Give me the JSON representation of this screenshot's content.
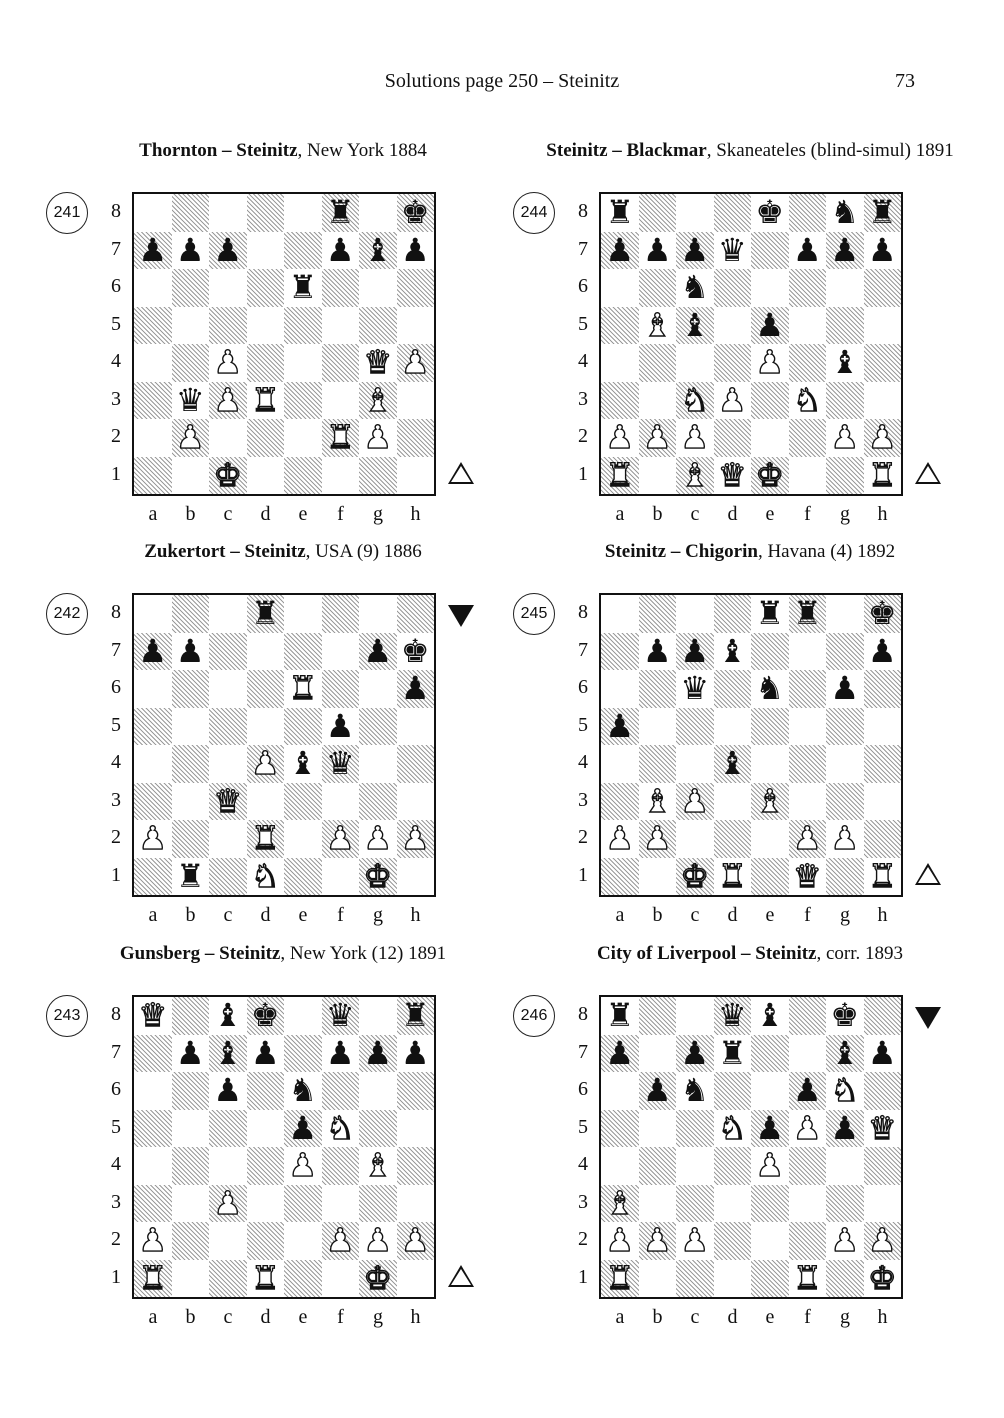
{
  "header": {
    "title": "Solutions page 250 – Steinitz",
    "page_number": "73"
  },
  "files": [
    "a",
    "b",
    "c",
    "d",
    "e",
    "f",
    "g",
    "h"
  ],
  "ranks": [
    "8",
    "7",
    "6",
    "5",
    "4",
    "3",
    "2",
    "1"
  ],
  "diagrams": [
    {
      "number": "241",
      "players": "Thornton – Steinitz",
      "details": ", New York 1884",
      "to_move": "white",
      "pieces": [
        {
          "sq": "f8",
          "p": "bR"
        },
        {
          "sq": "h8",
          "p": "bK"
        },
        {
          "sq": "a7",
          "p": "bP"
        },
        {
          "sq": "b7",
          "p": "bP"
        },
        {
          "sq": "c7",
          "p": "bP"
        },
        {
          "sq": "f7",
          "p": "bP"
        },
        {
          "sq": "g7",
          "p": "bB"
        },
        {
          "sq": "h7",
          "p": "bP"
        },
        {
          "sq": "e6",
          "p": "bR"
        },
        {
          "sq": "c4",
          "p": "wP"
        },
        {
          "sq": "g4",
          "p": "wQ"
        },
        {
          "sq": "h4",
          "p": "wP"
        },
        {
          "sq": "b3",
          "p": "bQ"
        },
        {
          "sq": "c3",
          "p": "wP"
        },
        {
          "sq": "d3",
          "p": "wR"
        },
        {
          "sq": "g3",
          "p": "wB"
        },
        {
          "sq": "b2",
          "p": "wP"
        },
        {
          "sq": "f2",
          "p": "wR"
        },
        {
          "sq": "g2",
          "p": "wP"
        },
        {
          "sq": "c1",
          "p": "wK"
        }
      ]
    },
    {
      "number": "244",
      "players": "Steinitz – Blackmar",
      "details": ", Skaneateles (blind-simul) 1891",
      "to_move": "white",
      "pieces": [
        {
          "sq": "a8",
          "p": "bR"
        },
        {
          "sq": "e8",
          "p": "bK"
        },
        {
          "sq": "g8",
          "p": "bN"
        },
        {
          "sq": "h8",
          "p": "bR"
        },
        {
          "sq": "a7",
          "p": "bP"
        },
        {
          "sq": "b7",
          "p": "bP"
        },
        {
          "sq": "c7",
          "p": "bP"
        },
        {
          "sq": "d7",
          "p": "bQ"
        },
        {
          "sq": "f7",
          "p": "bP"
        },
        {
          "sq": "g7",
          "p": "bP"
        },
        {
          "sq": "h7",
          "p": "bP"
        },
        {
          "sq": "c6",
          "p": "bN"
        },
        {
          "sq": "b5",
          "p": "wB"
        },
        {
          "sq": "c5",
          "p": "bB"
        },
        {
          "sq": "e5",
          "p": "bP"
        },
        {
          "sq": "e4",
          "p": "wP"
        },
        {
          "sq": "g4",
          "p": "bB"
        },
        {
          "sq": "c3",
          "p": "wN"
        },
        {
          "sq": "d3",
          "p": "wP"
        },
        {
          "sq": "f3",
          "p": "wN"
        },
        {
          "sq": "a2",
          "p": "wP"
        },
        {
          "sq": "b2",
          "p": "wP"
        },
        {
          "sq": "c2",
          "p": "wP"
        },
        {
          "sq": "g2",
          "p": "wP"
        },
        {
          "sq": "h2",
          "p": "wP"
        },
        {
          "sq": "a1",
          "p": "wR"
        },
        {
          "sq": "c1",
          "p": "wB"
        },
        {
          "sq": "d1",
          "p": "wQ"
        },
        {
          "sq": "e1",
          "p": "wK"
        },
        {
          "sq": "h1",
          "p": "wR"
        }
      ]
    },
    {
      "number": "242",
      "players": "Zukertort – Steinitz",
      "details": ", USA (9) 1886",
      "to_move": "black",
      "pieces": [
        {
          "sq": "d8",
          "p": "bR"
        },
        {
          "sq": "a7",
          "p": "bP"
        },
        {
          "sq": "b7",
          "p": "bP"
        },
        {
          "sq": "g7",
          "p": "bP"
        },
        {
          "sq": "h7",
          "p": "bK"
        },
        {
          "sq": "e6",
          "p": "wR"
        },
        {
          "sq": "h6",
          "p": "bP"
        },
        {
          "sq": "f5",
          "p": "bP"
        },
        {
          "sq": "d4",
          "p": "wP"
        },
        {
          "sq": "e4",
          "p": "bB"
        },
        {
          "sq": "f4",
          "p": "bQ"
        },
        {
          "sq": "c3",
          "p": "wQ"
        },
        {
          "sq": "a2",
          "p": "wP"
        },
        {
          "sq": "d2",
          "p": "wR"
        },
        {
          "sq": "f2",
          "p": "wP"
        },
        {
          "sq": "g2",
          "p": "wP"
        },
        {
          "sq": "h2",
          "p": "wP"
        },
        {
          "sq": "b1",
          "p": "bR"
        },
        {
          "sq": "d1",
          "p": "wN"
        },
        {
          "sq": "g1",
          "p": "wK"
        }
      ]
    },
    {
      "number": "245",
      "players": "Steinitz – Chigorin",
      "details": ", Havana (4) 1892",
      "to_move": "white",
      "pieces": [
        {
          "sq": "e8",
          "p": "bR"
        },
        {
          "sq": "f8",
          "p": "bR"
        },
        {
          "sq": "h8",
          "p": "bK"
        },
        {
          "sq": "b7",
          "p": "bP"
        },
        {
          "sq": "c7",
          "p": "bP"
        },
        {
          "sq": "d7",
          "p": "bB"
        },
        {
          "sq": "h7",
          "p": "bP"
        },
        {
          "sq": "c6",
          "p": "bQ"
        },
        {
          "sq": "e6",
          "p": "bN"
        },
        {
          "sq": "g6",
          "p": "bP"
        },
        {
          "sq": "a5",
          "p": "bP"
        },
        {
          "sq": "d4",
          "p": "bB"
        },
        {
          "sq": "b3",
          "p": "wB"
        },
        {
          "sq": "c3",
          "p": "wP"
        },
        {
          "sq": "e3",
          "p": "wB"
        },
        {
          "sq": "a2",
          "p": "wP"
        },
        {
          "sq": "b2",
          "p": "wP"
        },
        {
          "sq": "f2",
          "p": "wP"
        },
        {
          "sq": "g2",
          "p": "wP"
        },
        {
          "sq": "c1",
          "p": "wK"
        },
        {
          "sq": "d1",
          "p": "wR"
        },
        {
          "sq": "f1",
          "p": "wQ"
        },
        {
          "sq": "h1",
          "p": "wR"
        }
      ]
    },
    {
      "number": "243",
      "players": "Gunsberg – Steinitz",
      "details": ", New York (12) 1891",
      "to_move": "white",
      "pieces": [
        {
          "sq": "a8",
          "p": "wQ"
        },
        {
          "sq": "c8",
          "p": "bB"
        },
        {
          "sq": "d8",
          "p": "bK"
        },
        {
          "sq": "f8",
          "p": "bQ"
        },
        {
          "sq": "h8",
          "p": "bR"
        },
        {
          "sq": "b7",
          "p": "bP"
        },
        {
          "sq": "c7",
          "p": "bB"
        },
        {
          "sq": "d7",
          "p": "bP"
        },
        {
          "sq": "f7",
          "p": "bP"
        },
        {
          "sq": "g7",
          "p": "bP"
        },
        {
          "sq": "h7",
          "p": "bP"
        },
        {
          "sq": "c6",
          "p": "bP"
        },
        {
          "sq": "e6",
          "p": "bN"
        },
        {
          "sq": "e5",
          "p": "bP"
        },
        {
          "sq": "f5",
          "p": "wN"
        },
        {
          "sq": "e4",
          "p": "wP"
        },
        {
          "sq": "g4",
          "p": "wB"
        },
        {
          "sq": "c3",
          "p": "wP"
        },
        {
          "sq": "a2",
          "p": "wP"
        },
        {
          "sq": "f2",
          "p": "wP"
        },
        {
          "sq": "g2",
          "p": "wP"
        },
        {
          "sq": "h2",
          "p": "wP"
        },
        {
          "sq": "a1",
          "p": "wR"
        },
        {
          "sq": "d1",
          "p": "wR"
        },
        {
          "sq": "g1",
          "p": "wK"
        }
      ]
    },
    {
      "number": "246",
      "players": "City of Liverpool – Steinitz",
      "details": ", corr. 1893",
      "to_move": "black",
      "pieces": [
        {
          "sq": "a8",
          "p": "bR"
        },
        {
          "sq": "d8",
          "p": "bQ"
        },
        {
          "sq": "e8",
          "p": "bB"
        },
        {
          "sq": "g8",
          "p": "bK"
        },
        {
          "sq": "a7",
          "p": "bP"
        },
        {
          "sq": "c7",
          "p": "bP"
        },
        {
          "sq": "d7",
          "p": "bR"
        },
        {
          "sq": "g7",
          "p": "bB"
        },
        {
          "sq": "h7",
          "p": "bP"
        },
        {
          "sq": "b6",
          "p": "bP"
        },
        {
          "sq": "c6",
          "p": "bN"
        },
        {
          "sq": "f6",
          "p": "bP"
        },
        {
          "sq": "g6",
          "p": "wN"
        },
        {
          "sq": "d5",
          "p": "wN"
        },
        {
          "sq": "e5",
          "p": "bP"
        },
        {
          "sq": "f5",
          "p": "wP"
        },
        {
          "sq": "g5",
          "p": "bP"
        },
        {
          "sq": "h5",
          "p": "wQ"
        },
        {
          "sq": "e4",
          "p": "wP"
        },
        {
          "sq": "a3",
          "p": "wB"
        },
        {
          "sq": "a2",
          "p": "wP"
        },
        {
          "sq": "b2",
          "p": "wP"
        },
        {
          "sq": "c2",
          "p": "wP"
        },
        {
          "sq": "g2",
          "p": "wP"
        },
        {
          "sq": "h2",
          "p": "wP"
        },
        {
          "sq": "a1",
          "p": "wR"
        },
        {
          "sq": "f1",
          "p": "wR"
        },
        {
          "sq": "h1",
          "p": "wK"
        }
      ]
    }
  ]
}
